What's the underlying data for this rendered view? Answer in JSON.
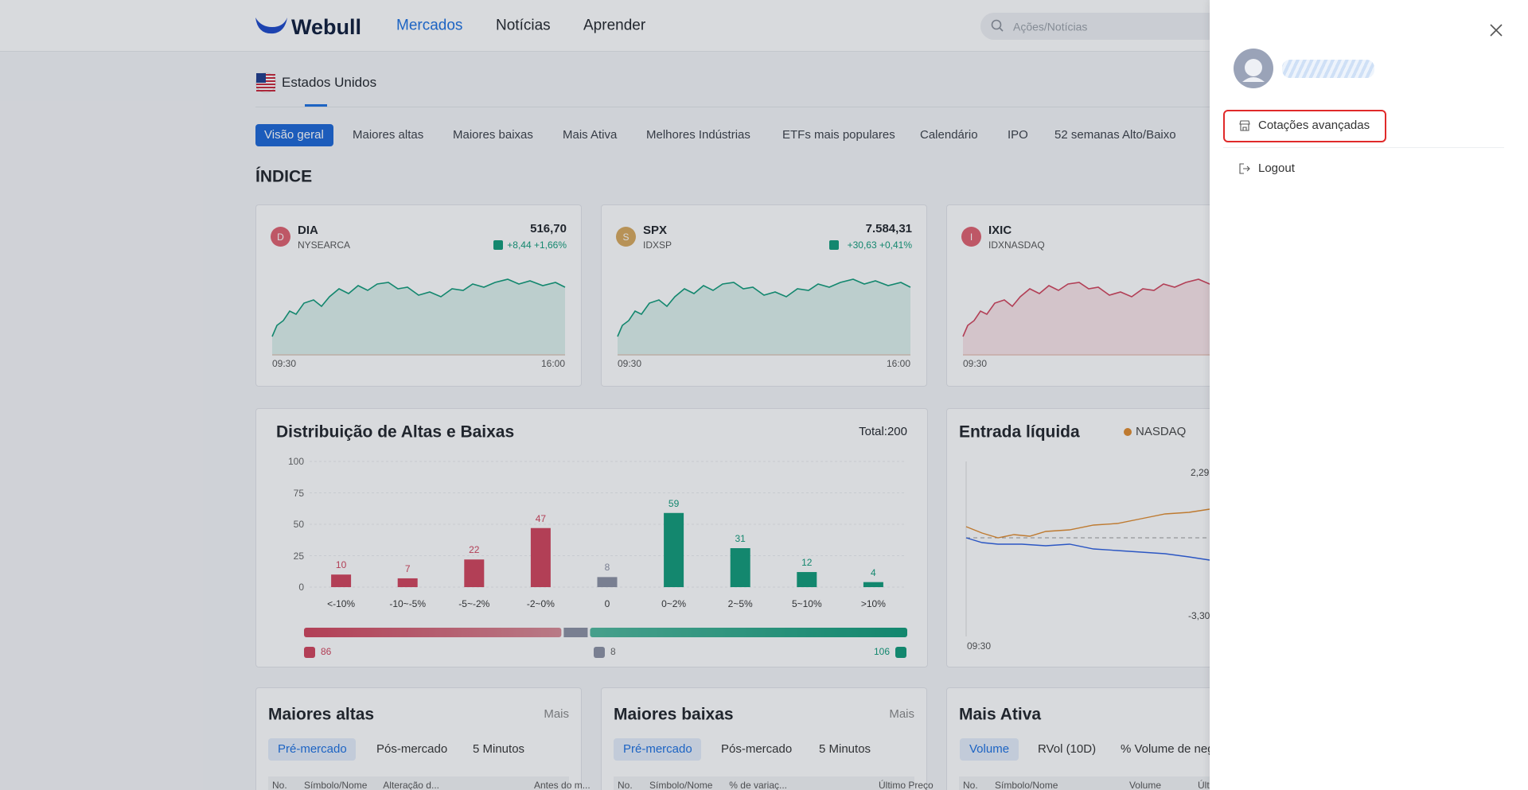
{
  "header": {
    "logo": "Webull",
    "nav": [
      "Mercados",
      "Notícias",
      "Aprender"
    ],
    "search_placeholder": "Ações/Notícias"
  },
  "region": "Estados Unidos",
  "tabs": [
    "Visão geral",
    "Maiores altas",
    "Maiores baixas",
    "Mais Ativa",
    "Melhores Indústrias",
    "ETFs mais populares",
    "Calendário",
    "IPO",
    "52 semanas Alto/Baixo"
  ],
  "section_title": "ÍNDICE",
  "indices": [
    {
      "letter": "D",
      "symbol": "DIA",
      "exchange": "NYSEARCA",
      "price": "516,70",
      "change": "+8,44 +1,66%",
      "start": "09:30",
      "end": "16:00"
    },
    {
      "letter": "S",
      "symbol": "SPX",
      "exchange": "IDXSP",
      "price": "7.584,31",
      "change": "+30,63 +0,41%",
      "start": "09:30",
      "end": "16:00"
    },
    {
      "letter": "I",
      "symbol": "IXIC",
      "exchange": "IDXNASDAQ",
      "start": "09:30"
    }
  ],
  "distribution": {
    "title": "Distribuição de Altas e Baixas",
    "total": "Total:200",
    "categories": [
      "<-10%",
      "-10~-5%",
      "-5~-2%",
      "-2~0%",
      "0",
      "0~2%",
      "2~5%",
      "5~10%",
      ">10%"
    ],
    "values": [
      10,
      7,
      22,
      47,
      8,
      59,
      31,
      12,
      4
    ],
    "colors": [
      "#d1435b",
      "#d1435b",
      "#d1435b",
      "#d1435b",
      "#8b90a3",
      "#0f9a78",
      "#0f9a78",
      "#0f9a78",
      "#0f9a78"
    ],
    "ylim": [
      0,
      100
    ],
    "yticks": [
      0,
      25,
      50,
      75,
      100
    ],
    "summary": {
      "down": 86,
      "flat": 8,
      "up": 106
    }
  },
  "net_inflow": {
    "title": "Entrada líquida",
    "legend": "NASDAQ",
    "top": "2,29",
    "bottom": "-3,30",
    "start": "09:30"
  },
  "lists": [
    {
      "title": "Maiores altas",
      "more": "Mais",
      "tabs": [
        "Pré-mercado",
        "Pós-mercado",
        "5 Minutos"
      ],
      "columns": [
        "No.",
        "Símbolo/Nome",
        "Alteração d...",
        "Antes do m..."
      ]
    },
    {
      "title": "Maiores baixas",
      "more": "Mais",
      "tabs": [
        "Pré-mercado",
        "Pós-mercado",
        "5 Minutos"
      ],
      "columns": [
        "No.",
        "Símbolo/Nome",
        "% de variaç...",
        "Último Preço"
      ]
    },
    {
      "title": "Mais Ativa",
      "tabs": [
        "Volume",
        "RVol (10D)",
        "% Volume de neg"
      ],
      "columns": [
        "No.",
        "Símbolo/Nome",
        "Volume",
        "Últ"
      ]
    }
  ],
  "drawer": {
    "menu": [
      "Cotações avançadas",
      "Logout"
    ]
  }
}
